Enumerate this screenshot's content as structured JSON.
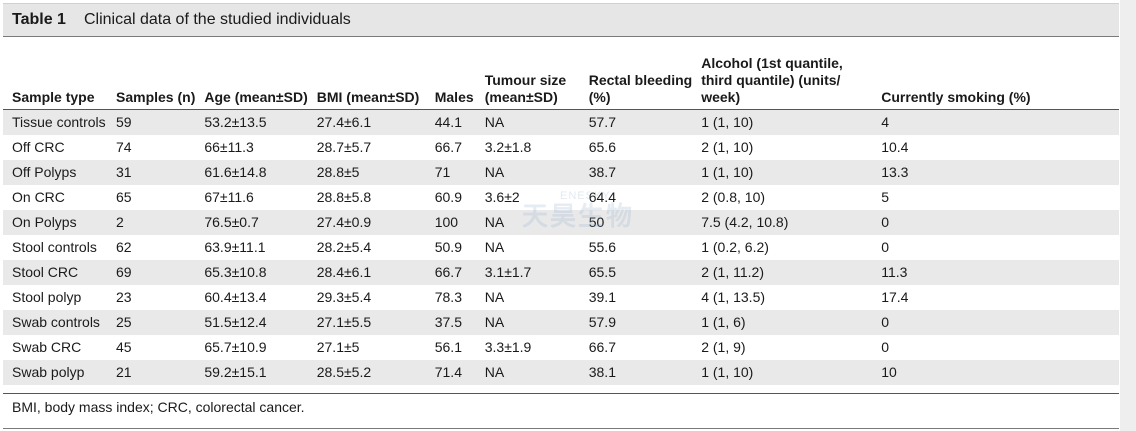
{
  "title": {
    "label": "Table 1",
    "text": "Clinical data of the studied individuals"
  },
  "headers": [
    [
      "Sample type"
    ],
    [
      "Samples (n)"
    ],
    [
      "Age (mean±SD)"
    ],
    [
      "BMI (mean±SD)"
    ],
    [
      "Males"
    ],
    [
      "Tumour size",
      "(mean±SD)"
    ],
    [
      "Rectal bleeding",
      "(%)"
    ],
    [
      "Alcohol (1st quantile,",
      "third quantile) (units/",
      "week)"
    ],
    [
      "Currently smoking (%)"
    ]
  ],
  "rows": [
    [
      "Tissue controls",
      "59",
      "53.2±13.5",
      "27.4±6.1",
      "44.1",
      "NA",
      "57.7",
      "1 (1, 10)",
      "4"
    ],
    [
      "Off CRC",
      "74",
      "66±11.3",
      "28.7±5.7",
      "66.7",
      "3.2±1.8",
      "65.6",
      "2 (1, 10)",
      "10.4"
    ],
    [
      "Off Polyps",
      "31",
      "61.6±14.8",
      "28.8±5",
      "71",
      "NA",
      "38.7",
      "1 (1, 10)",
      "13.3"
    ],
    [
      "On CRC",
      "65",
      "67±11.6",
      "28.8±5.8",
      "60.9",
      "3.6±2",
      "64.4",
      "2 (0.8, 10)",
      "5"
    ],
    [
      "On Polyps",
      "2",
      "76.5±0.7",
      "27.4±0.9",
      "100",
      "NA",
      "50",
      "7.5 (4.2, 10.8)",
      "0"
    ],
    [
      "Stool controls",
      "62",
      "63.9±11.1",
      "28.2±5.4",
      "50.9",
      "NA",
      "55.6",
      "1 (0.2, 6.2)",
      "0"
    ],
    [
      "Stool CRC",
      "69",
      "65.3±10.8",
      "28.4±6.1",
      "66.7",
      "3.1±1.7",
      "65.5",
      "2 (1, 11.2)",
      "11.3"
    ],
    [
      "Stool polyp",
      "23",
      "60.4±13.4",
      "29.3±5.4",
      "78.3",
      "NA",
      "39.1",
      "4 (1, 13.5)",
      "17.4"
    ],
    [
      "Swab controls",
      "25",
      "51.5±12.4",
      "27.1±5.5",
      "37.5",
      "NA",
      "57.9",
      "1 (1, 6)",
      "0"
    ],
    [
      "Swab CRC",
      "45",
      "65.7±10.9",
      "27.1±5",
      "56.1",
      "3.3±1.9",
      "66.7",
      "2 (1, 9)",
      "0"
    ],
    [
      "Swab polyp",
      "21",
      "59.2±15.1",
      "28.5±5.2",
      "71.4",
      "NA",
      "38.1",
      "1 (1, 10)",
      "10"
    ]
  ],
  "footnote": "BMI, body mass index; CRC, colorectal cancer.",
  "watermark": {
    "latin": "ENESKY",
    "cjk": "天昊生物"
  },
  "colors": {
    "title_bg": "#e6e6e6",
    "stripe_bg": "#e9e9e9",
    "rule": "#555555"
  }
}
